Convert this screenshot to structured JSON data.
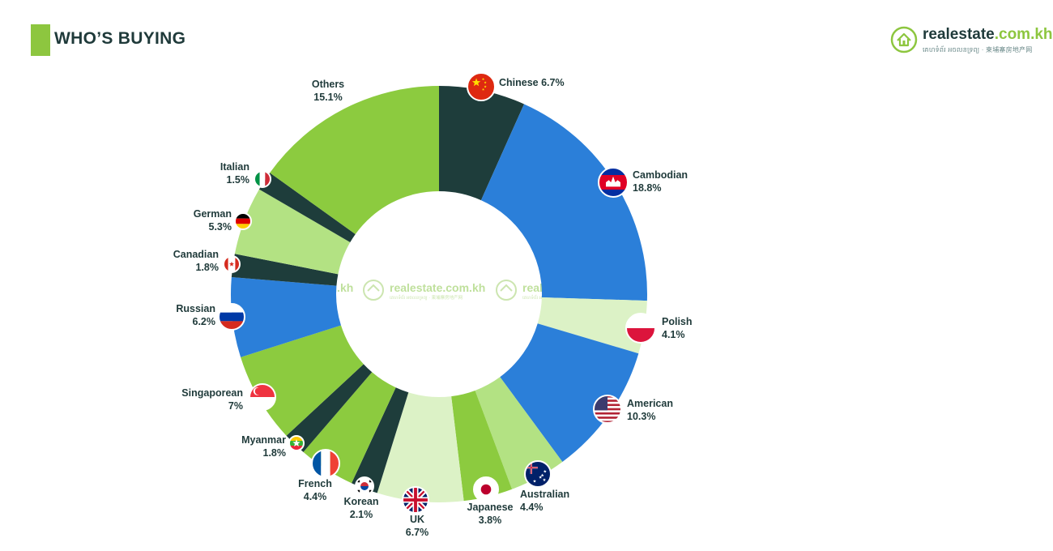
{
  "header": {
    "title": "WHO’S BUYING"
  },
  "logo": {
    "name_main": "realestate",
    "name_accent": ".com.kh",
    "tagline": "គេហទំព័រ អចលនទ្រព្យ · 柬埔寨房地产网",
    "icon": "house-logo-icon"
  },
  "colors": {
    "dark": "#1e3d3b",
    "blue": "#2b7fd9",
    "pale_green": "#dcf2c6",
    "green": "#8ccb3f",
    "light_green": "#b3e283",
    "brand_green": "#8dc63f"
  },
  "chart_data": {
    "type": "pie",
    "donut": true,
    "title": "",
    "unit": "%",
    "slices": [
      {
        "name": "Chinese",
        "value": 6.7,
        "label": "Chinese 6.7%",
        "flag": "china-flag-icon"
      },
      {
        "name": "Cambodian",
        "value": 18.8,
        "label": "18.8%",
        "flag": "cambodia-flag-icon"
      },
      {
        "name": "Polish",
        "value": 4.1,
        "label": "4.1%",
        "flag": "poland-flag-icon"
      },
      {
        "name": "American",
        "value": 10.3,
        "label": "10.3%",
        "flag": "usa-flag-icon"
      },
      {
        "name": "Australian",
        "value": 4.4,
        "label": "4.4%",
        "flag": "australia-flag-icon"
      },
      {
        "name": "Japanese",
        "value": 3.8,
        "label": "3.8%",
        "flag": "japan-flag-icon"
      },
      {
        "name": "UK",
        "value": 6.7,
        "label": "6.7%",
        "flag": "uk-flag-icon"
      },
      {
        "name": "Korean",
        "value": 2.1,
        "label": "2.1%",
        "flag": "korea-flag-icon"
      },
      {
        "name": "French",
        "value": 4.4,
        "label": "4.4%",
        "flag": "france-flag-icon"
      },
      {
        "name": "Myanmar",
        "value": 1.8,
        "label": "1.8%",
        "flag": "myanmar-flag-icon"
      },
      {
        "name": "Singaporean",
        "value": 7,
        "label": "7%",
        "flag": "singapore-flag-icon"
      },
      {
        "name": "Russian",
        "value": 6.2,
        "label": "6.2%",
        "flag": "russia-flag-icon"
      },
      {
        "name": "Canadian",
        "value": 1.8,
        "label": "1.8%",
        "flag": "canada-flag-icon"
      },
      {
        "name": "German",
        "value": 5.3,
        "label": "5.3%",
        "flag": "germany-flag-icon"
      },
      {
        "name": "Italian",
        "value": 1.5,
        "label": "1.5%",
        "flag": "italy-flag-icon"
      },
      {
        "name": "Others",
        "value": 15.1,
        "label": "15.1%",
        "flag": ""
      }
    ]
  }
}
